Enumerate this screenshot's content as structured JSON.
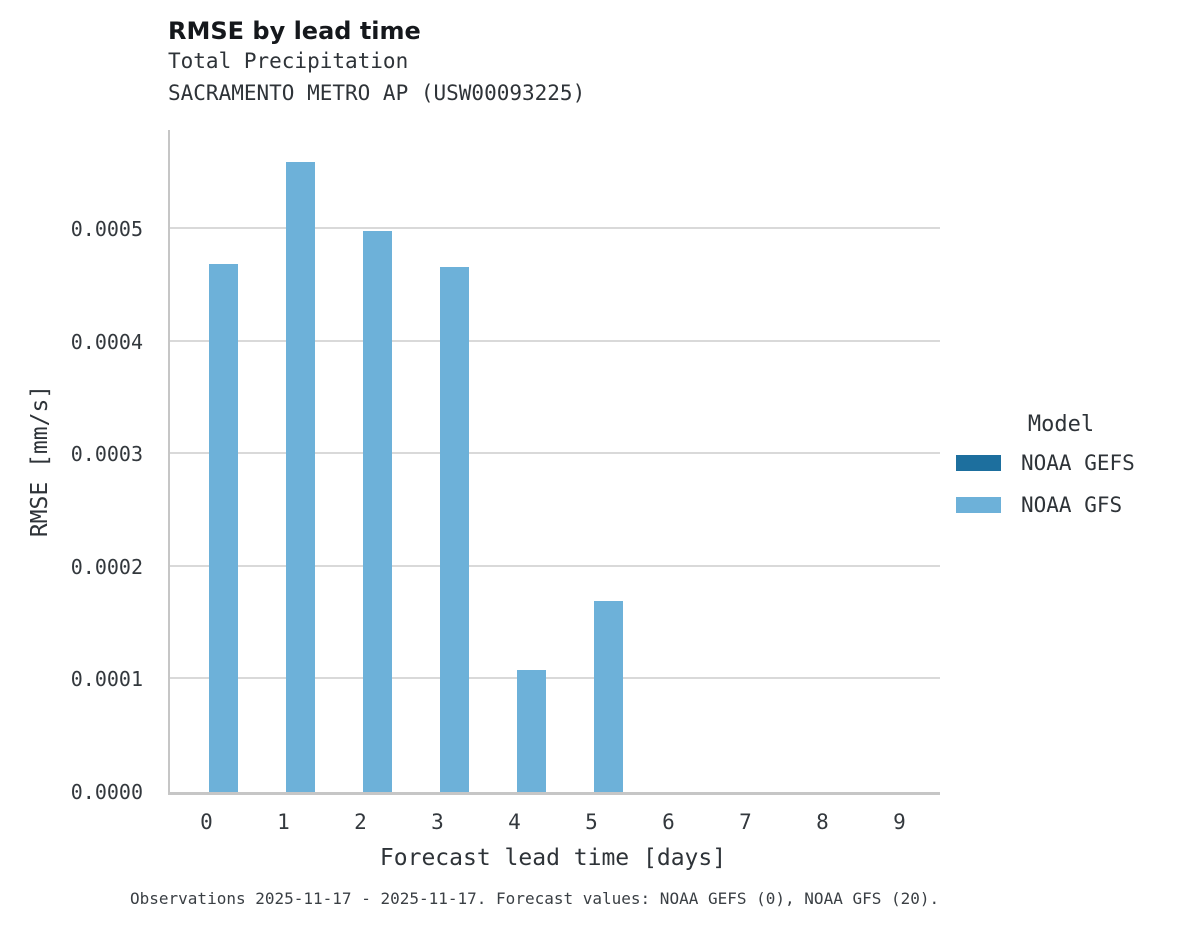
{
  "header": {
    "title": "RMSE by lead time",
    "subtitle": "Total Precipitation",
    "station": "SACRAMENTO METRO AP (USW00093225)"
  },
  "chart_data": {
    "type": "bar",
    "title": "RMSE by lead time",
    "subtitle": [
      "Total Precipitation",
      "SACRAMENTO METRO AP (USW00093225)"
    ],
    "categories": [
      "0",
      "1",
      "2",
      "3",
      "4",
      "5",
      "6",
      "7",
      "8",
      "9"
    ],
    "series": [
      {
        "name": "NOAA GEFS",
        "color": "#1d6f9e",
        "values": [
          null,
          null,
          null,
          null,
          null,
          null,
          null,
          null,
          null,
          null
        ]
      },
      {
        "name": "NOAA GFS",
        "color": "#6db1d9",
        "values": [
          0.000469,
          0.00056,
          0.000498,
          0.000466,
          0.000108,
          0.00017,
          null,
          null,
          null,
          null
        ]
      }
    ],
    "xlabel": "Forecast lead time [days]",
    "ylabel": "RMSE [mm/s]",
    "ylim": [
      0,
      0.000588
    ],
    "yticks": [
      0,
      0.0001,
      0.0002,
      0.0003,
      0.0004,
      0.0005
    ],
    "ytick_labels": [
      "0.0000",
      "0.0001",
      "0.0002",
      "0.0003",
      "0.0004",
      "0.0005"
    ],
    "grid": true,
    "legend_position": "right"
  },
  "legend": {
    "title": "Model",
    "items": [
      {
        "label": "NOAA GEFS",
        "color": "#1d6f9e"
      },
      {
        "label": "NOAA GFS",
        "color": "#6db1d9"
      }
    ]
  },
  "footer": {
    "text": "Observations 2025-11-17 - 2025-11-17. Forecast values: NOAA GEFS (0), NOAA GFS (20)."
  },
  "colors": {
    "background": "#ffffff",
    "grid": "#d9d9d9",
    "spine": "#c6c6c6"
  }
}
